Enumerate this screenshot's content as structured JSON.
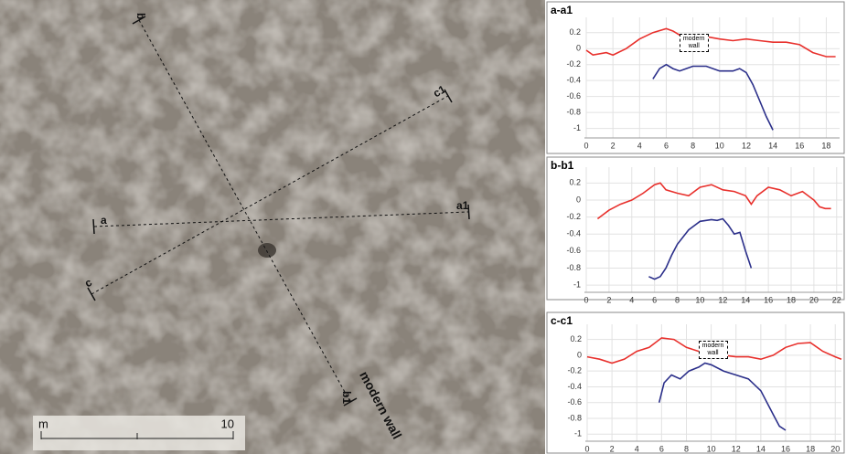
{
  "map": {
    "labels": [
      "a",
      "a1",
      "b",
      "b1",
      "c",
      "c1"
    ],
    "wall_label": "modern wall",
    "scale_bar": {
      "unit": "m",
      "length": 10
    }
  },
  "chart_data": [
    {
      "type": "line",
      "title": "a-a1",
      "annotation": "modern wall",
      "grid": true,
      "xlim": [
        0,
        19
      ],
      "xticks": [
        0,
        2,
        4,
        6,
        8,
        10,
        12,
        14,
        16,
        18
      ],
      "ylim": [
        -1.05,
        0.3
      ],
      "yticks": [
        0.2,
        0,
        -0.2,
        -0.4,
        -0.6,
        -0.8,
        -1
      ],
      "series": [
        {
          "color": "#e8302c",
          "x": [
            0,
            0.5,
            1.5,
            2,
            3,
            4,
            5,
            6,
            6.5,
            7.5,
            8,
            9,
            10,
            11,
            12,
            13,
            14,
            15,
            16,
            17,
            18,
            18.7
          ],
          "values": [
            -0.02,
            -0.08,
            -0.05,
            -0.08,
            0,
            0.12,
            0.2,
            0.25,
            0.22,
            0.12,
            0.1,
            0.15,
            0.12,
            0.1,
            0.12,
            0.1,
            0.08,
            0.08,
            0.05,
            -0.05,
            -0.1,
            -0.1
          ]
        },
        {
          "color": "#2b2f8a",
          "x": [
            5,
            5.5,
            6,
            6.5,
            7,
            7.5,
            8,
            9,
            10,
            11,
            11.5,
            12,
            12.5,
            13,
            13.5,
            14
          ],
          "values": [
            -0.38,
            -0.25,
            -0.2,
            -0.25,
            -0.28,
            -0.25,
            -0.22,
            -0.22,
            -0.28,
            -0.28,
            -0.25,
            -0.3,
            -0.45,
            -0.65,
            -0.85,
            -1.02
          ]
        }
      ]
    },
    {
      "type": "line",
      "title": "b-b1",
      "grid": true,
      "xlim": [
        0,
        22.5
      ],
      "xticks": [
        0,
        2,
        4,
        6,
        8,
        10,
        12,
        14,
        16,
        18,
        20,
        22
      ],
      "ylim": [
        -1.02,
        0.3
      ],
      "yticks": [
        0.2,
        0,
        -0.2,
        -0.4,
        -0.6,
        -0.8,
        -1
      ],
      "series": [
        {
          "color": "#e8302c",
          "x": [
            1,
            2,
            3,
            4,
            5,
            6,
            6.5,
            7,
            8,
            9,
            10,
            11,
            12,
            13,
            14,
            14.5,
            15,
            16,
            17,
            18,
            19,
            20,
            20.5,
            21,
            21.5
          ],
          "values": [
            -0.22,
            -0.12,
            -0.05,
            0,
            0.08,
            0.18,
            0.2,
            0.12,
            0.08,
            0.05,
            0.15,
            0.18,
            0.12,
            0.1,
            0.05,
            -0.05,
            0.05,
            0.15,
            0.12,
            0.05,
            0.1,
            0,
            -0.08,
            -0.1,
            -0.1
          ]
        },
        {
          "color": "#2b2f8a",
          "x": [
            5.5,
            6,
            6.5,
            7,
            7.5,
            8,
            9,
            10,
            11,
            11.5,
            12,
            12.5,
            13,
            13.5,
            14,
            14.5
          ],
          "values": [
            -0.9,
            -0.93,
            -0.9,
            -0.8,
            -0.65,
            -0.52,
            -0.35,
            -0.25,
            -0.23,
            -0.24,
            -0.22,
            -0.3,
            -0.4,
            -0.38,
            -0.6,
            -0.8
          ]
        }
      ]
    },
    {
      "type": "line",
      "title": "c-c1",
      "annotation": "modern wall",
      "grid": true,
      "xlim": [
        0,
        20.5
      ],
      "xticks": [
        0,
        2,
        4,
        6,
        8,
        10,
        12,
        14,
        16,
        18,
        20
      ],
      "ylim": [
        -1.02,
        0.3
      ],
      "yticks": [
        0.2,
        0,
        -0.2,
        -0.4,
        -0.6,
        -0.8,
        -1
      ],
      "series": [
        {
          "color": "#e8302c",
          "x": [
            0,
            1,
            2,
            3,
            4,
            5,
            6,
            7,
            8,
            9,
            10,
            11,
            12,
            13,
            14,
            15,
            16,
            17,
            18,
            19,
            20,
            20.5
          ],
          "values": [
            -0.02,
            -0.05,
            -0.1,
            -0.05,
            0.05,
            0.1,
            0.22,
            0.2,
            0.1,
            0.05,
            0.02,
            0,
            -0.02,
            -0.02,
            -0.05,
            0,
            0.1,
            0.15,
            0.16,
            0.05,
            -0.02,
            -0.05
          ]
        },
        {
          "color": "#2b2f8a",
          "x": [
            5.8,
            6.2,
            6.8,
            7.5,
            8.2,
            9,
            9.5,
            10,
            11,
            12,
            13,
            14,
            15,
            15.5,
            16
          ],
          "values": [
            -0.6,
            -0.35,
            -0.25,
            -0.3,
            -0.2,
            -0.15,
            -0.1,
            -0.12,
            -0.2,
            -0.25,
            -0.3,
            -0.45,
            -0.75,
            -0.9,
            -0.95
          ]
        }
      ]
    }
  ]
}
